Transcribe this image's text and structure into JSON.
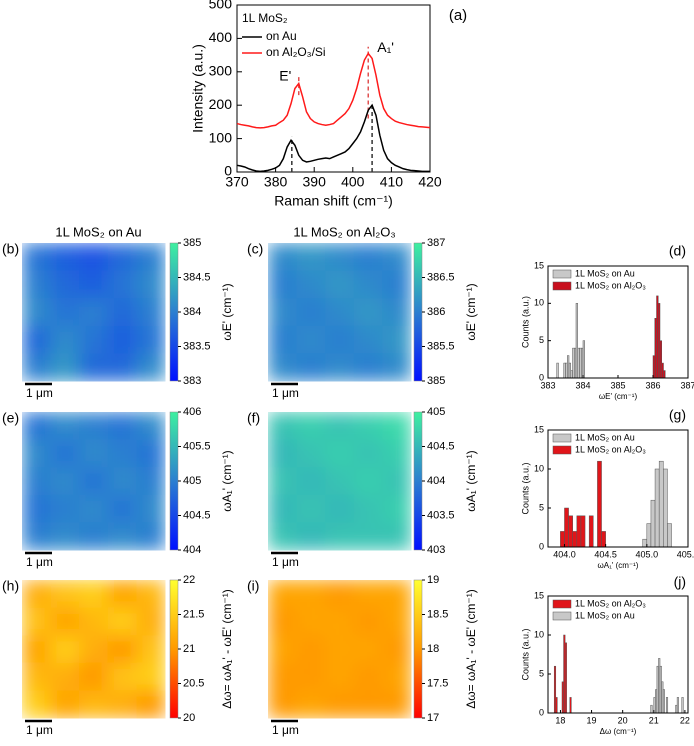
{
  "chart_data": [
    {
      "type": "line",
      "panel": "(a)",
      "xlabel": "Raman shift (cm⁻¹)",
      "ylabel": "Intensity (a.u.)",
      "xlim": [
        370,
        420
      ],
      "xticks": [
        370,
        380,
        390,
        400,
        410,
        420
      ],
      "ylim": [
        0,
        500
      ],
      "yticks": [
        0,
        100,
        200,
        300,
        400,
        500
      ],
      "legend_title": "1L MoS₂",
      "annotations": [
        "E'",
        "A₁'"
      ],
      "x": [
        370,
        371,
        372,
        373,
        374,
        375,
        376,
        377,
        378,
        379,
        380,
        381,
        382,
        383,
        384,
        385,
        386,
        387,
        388,
        389,
        390,
        391,
        392,
        393,
        394,
        395,
        396,
        397,
        398,
        399,
        400,
        401,
        402,
        403,
        404,
        405,
        406,
        407,
        408,
        409,
        410,
        411,
        412,
        413,
        414,
        415,
        416,
        417,
        418,
        419,
        420
      ],
      "series": [
        {
          "name": "on Au",
          "color": "#000000",
          "values": [
            20,
            18,
            15,
            10,
            6,
            3,
            2,
            3,
            5,
            8,
            12,
            20,
            40,
            75,
            95,
            80,
            50,
            35,
            30,
            32,
            35,
            38,
            40,
            42,
            40,
            45,
            50,
            55,
            60,
            70,
            85,
            100,
            120,
            150,
            185,
            200,
            170,
            110,
            65,
            40,
            28,
            20,
            15,
            10,
            7,
            5,
            4,
            3,
            2,
            2,
            2
          ]
        },
        {
          "name": "on Al₂O₃/Si",
          "color": "#ff1a1a",
          "values": [
            145,
            142,
            140,
            138,
            135,
            133,
            132,
            133,
            135,
            138,
            140,
            148,
            155,
            170,
            205,
            250,
            265,
            225,
            180,
            160,
            150,
            145,
            142,
            140,
            142,
            145,
            155,
            165,
            175,
            190,
            215,
            250,
            295,
            335,
            355,
            340,
            290,
            230,
            190,
            170,
            160,
            152,
            148,
            145,
            142,
            140,
            138,
            136,
            135,
            134,
            133
          ]
        }
      ],
      "reference_lines": [
        {
          "x": 384.2,
          "y": [
            0,
            105
          ],
          "color": "#333333"
        },
        {
          "x": 386,
          "y": [
            230,
            285
          ],
          "color": "#e05050"
        },
        {
          "x": 405,
          "y": [
            0,
            210
          ],
          "color": "#333333"
        },
        {
          "x": 404,
          "y": [
            160,
            375
          ],
          "color": "#e05050"
        }
      ]
    },
    {
      "type": "heatmap",
      "panel": "(b)",
      "title": "1L MoS₂ on Au",
      "zlabel": "ωE' (cm⁻¹)",
      "scale_bar": "1 μm",
      "colormap": [
        "#0010ff",
        "#2c7fd0",
        "#3ff0a0"
      ],
      "zlim": [
        383,
        385
      ],
      "zticks": [
        383,
        383.5,
        384,
        384.5,
        385
      ],
      "values": [
        [
          383.9,
          383.7,
          383.6,
          383.8,
          384.0
        ],
        [
          384.0,
          383.8,
          383.7,
          383.9,
          384.1
        ],
        [
          384.1,
          383.9,
          384.0,
          383.8,
          384.0
        ],
        [
          383.8,
          384.1,
          383.9,
          383.7,
          383.9
        ],
        [
          384.0,
          384.2,
          383.8,
          383.8,
          384.1
        ]
      ]
    },
    {
      "type": "heatmap",
      "panel": "(c)",
      "title": "1L MoS₂ on Al₂O₃",
      "zlabel": "ωE' (cm⁻¹)",
      "scale_bar": "1 μm",
      "colormap": [
        "#0010ff",
        "#2c7fd0",
        "#3ff0a0"
      ],
      "zlim": [
        385,
        387
      ],
      "zticks": [
        385,
        385.5,
        386,
        386.5,
        387
      ],
      "values": [
        [
          386.1,
          386.2,
          386.1,
          386.0,
          386.1
        ],
        [
          386.0,
          386.1,
          386.2,
          386.1,
          386.0
        ],
        [
          386.1,
          386.0,
          386.1,
          386.2,
          386.1
        ],
        [
          386.0,
          386.1,
          386.0,
          386.1,
          386.2
        ],
        [
          386.1,
          386.0,
          386.1,
          386.0,
          386.1
        ]
      ]
    },
    {
      "type": "histogram",
      "panel": "(d)",
      "xlabel": "ωE' (cm⁻¹)",
      "ylabel": "Counts (a.u.)",
      "xlim": [
        383,
        387
      ],
      "xticks": [
        383,
        384,
        385,
        386,
        387
      ],
      "ylim": [
        0,
        15
      ],
      "yticks": [
        0,
        5,
        10,
        15
      ],
      "series": [
        {
          "name": "1L MoS₂ on Au",
          "color": "#c8c8c8",
          "bins": [
            383.25,
            383.3,
            383.35,
            383.4,
            383.45,
            383.5,
            383.55,
            383.6,
            383.65,
            383.7,
            383.75,
            383.8,
            383.85,
            383.9,
            383.95,
            384.0,
            384.05
          ],
          "counts": [
            2,
            0,
            0,
            0,
            2,
            2,
            3,
            2,
            1,
            4,
            4,
            10,
            4,
            4,
            4,
            5
          ]
        },
        {
          "name": "1L MoS₂ on Al₂O₃",
          "color": "#c8101e",
          "bins": [
            386.0,
            386.05,
            386.1,
            386.15,
            386.2,
            386.25,
            386.3,
            386.35
          ],
          "counts": [
            3,
            8,
            11,
            10,
            5,
            2,
            1
          ]
        }
      ]
    },
    {
      "type": "heatmap",
      "panel": "(e)",
      "zlabel": "ωA₁' (cm⁻¹)",
      "scale_bar": "1 μm",
      "colormap": [
        "#0010ff",
        "#2c7fd0",
        "#3ff0a0"
      ],
      "zlim": [
        404,
        406
      ],
      "zticks": [
        404,
        404.5,
        405,
        405.5,
        406
      ],
      "values": [
        [
          404.9,
          405.1,
          405.0,
          404.9,
          405.1
        ],
        [
          405.1,
          404.9,
          405.1,
          405.0,
          404.9
        ],
        [
          405.0,
          405.1,
          404.9,
          405.1,
          405.0
        ],
        [
          404.9,
          405.0,
          405.1,
          404.9,
          405.1
        ],
        [
          405.0,
          405.1,
          405.0,
          405.1,
          405.0
        ]
      ]
    },
    {
      "type": "heatmap",
      "panel": "(f)",
      "zlabel": "ωA₁' (cm⁻¹)",
      "scale_bar": "1 μm",
      "colormap": [
        "#0010ff",
        "#2c7fd0",
        "#3ff0a0"
      ],
      "zlim": [
        403,
        405
      ],
      "zticks": [
        403,
        403.5,
        404,
        404.5,
        405
      ],
      "values": [
        [
          404.6,
          404.7,
          404.6,
          404.7,
          404.8
        ],
        [
          404.5,
          404.6,
          404.7,
          404.6,
          404.7
        ],
        [
          404.6,
          404.5,
          404.6,
          404.7,
          404.6
        ],
        [
          404.5,
          404.6,
          404.5,
          404.6,
          404.7
        ],
        [
          404.6,
          404.5,
          404.6,
          404.6,
          404.6
        ]
      ]
    },
    {
      "type": "histogram",
      "panel": "(g)",
      "xlabel": "ωA₁' (cm⁻¹)",
      "ylabel": "Counts (a.u.)",
      "xlim": [
        403.8,
        405.5
      ],
      "xticks": [
        {
          "value": 404,
          "label": "404.0"
        },
        404.5,
        {
          "value": 405,
          "label": "405.0"
        },
        405.5
      ],
      "ylim": [
        0,
        15
      ],
      "yticks": [
        0,
        5,
        10,
        15
      ],
      "series": [
        {
          "name": "1L MoS₂ on Au",
          "color": "#c8c8c8",
          "bins": [
            404.95,
            405.0,
            405.05,
            405.1,
            405.15,
            405.2,
            405.25,
            405.3
          ],
          "counts": [
            1,
            3,
            6,
            10,
            11,
            10,
            3
          ]
        },
        {
          "name": "1L MoS₂ on Al₂O₃",
          "color": "#e0151a",
          "bins": [
            403.95,
            404.0,
            404.05,
            404.1,
            404.15,
            404.2,
            404.25,
            404.3,
            404.35,
            404.4,
            404.45,
            404.5
          ],
          "counts": [
            2,
            5,
            4,
            2,
            4,
            4,
            0,
            4,
            0,
            11,
            2
          ]
        }
      ]
    },
    {
      "type": "heatmap",
      "panel": "(h)",
      "zlabel": "Δω= ωA₁' - ωE' (cm⁻¹)",
      "scale_bar": "1 μm",
      "colormap": [
        "#ff0000",
        "#ff9a00",
        "#ffff30"
      ],
      "zlim": [
        20,
        22
      ],
      "zticks": [
        20,
        20.5,
        21,
        21.5,
        22
      ],
      "values": [
        [
          21.2,
          21.4,
          21.5,
          21.1,
          21.3
        ],
        [
          21.4,
          21.1,
          21.3,
          21.5,
          21.2
        ],
        [
          21.1,
          21.5,
          21.2,
          21.0,
          21.4
        ],
        [
          21.3,
          21.2,
          21.0,
          21.4,
          21.5
        ],
        [
          21.5,
          21.1,
          21.3,
          21.2,
          21.0
        ]
      ]
    },
    {
      "type": "heatmap",
      "panel": "(i)",
      "zlabel": "Δω= ωA₁' - ωE' (cm⁻¹)",
      "scale_bar": "1 μm",
      "colormap": [
        "#ff0000",
        "#ff9a00",
        "#ffff30"
      ],
      "zlim": [
        17,
        19
      ],
      "zticks": [
        17,
        17.5,
        18,
        18.5,
        19
      ],
      "values": [
        [
          18.1,
          18.1,
          18.0,
          18.1,
          18.1
        ],
        [
          18.0,
          18.1,
          18.1,
          18.0,
          18.1
        ],
        [
          18.1,
          18.0,
          18.1,
          18.1,
          18.0
        ],
        [
          18.0,
          18.0,
          18.1,
          18.0,
          18.1
        ],
        [
          18.0,
          18.1,
          18.0,
          18.0,
          18.0
        ]
      ]
    },
    {
      "type": "histogram",
      "panel": "(j)",
      "xlabel": "Δω (cm⁻¹)",
      "ylabel": "Counts (a.u.)",
      "xlim": [
        17.6,
        22.1
      ],
      "xticks": [
        18,
        19,
        20,
        21,
        22
      ],
      "ylim": [
        0,
        15
      ],
      "yticks": [
        0,
        5,
        10,
        15
      ],
      "series": [
        {
          "name": "1L MoS₂ on Al₂O₃",
          "color": "#e0151a",
          "bins": [
            17.8,
            17.85,
            17.9,
            17.95,
            18.0,
            18.05,
            18.1,
            18.15,
            18.2,
            18.25,
            18.3,
            18.35
          ],
          "counts": [
            6,
            2,
            0,
            0,
            0,
            4,
            10,
            9,
            0,
            0,
            2
          ]
        },
        {
          "name": "1L MoS₂ on Au",
          "color": "#c8c8c8",
          "bins": [
            20.9,
            20.95,
            21.0,
            21.05,
            21.1,
            21.15,
            21.2,
            21.25,
            21.3,
            21.35,
            21.4,
            21.45,
            21.5,
            21.55,
            21.6,
            21.65,
            21.7,
            21.75,
            21.8,
            21.85,
            21.9,
            21.95
          ],
          "counts": [
            1,
            0,
            2,
            3,
            6,
            7,
            6,
            4,
            3,
            0,
            2,
            0,
            0,
            0,
            0,
            0,
            1,
            2,
            0,
            0,
            2
          ]
        }
      ]
    }
  ]
}
